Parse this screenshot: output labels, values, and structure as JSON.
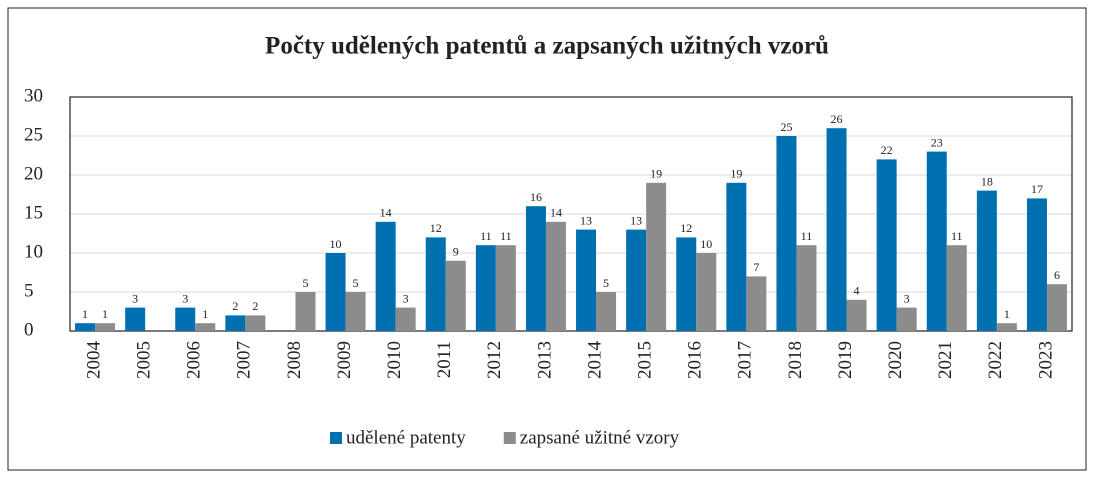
{
  "chart_data": {
    "type": "bar",
    "title": "Počty udělených patentů a zapsaných užitných vzorů",
    "categories": [
      "2004",
      "2005",
      "2006",
      "2007",
      "2008",
      "2009",
      "2010",
      "2011",
      "2012",
      "2013",
      "2014",
      "2015",
      "2016",
      "2017",
      "2018",
      "2019",
      "2020",
      "2021",
      "2022",
      "2023"
    ],
    "series": [
      {
        "name": "udělené patenty",
        "color": "#0070b0",
        "values": [
          1,
          3,
          3,
          2,
          null,
          10,
          14,
          12,
          11,
          16,
          13,
          13,
          12,
          19,
          25,
          26,
          22,
          23,
          18,
          17
        ]
      },
      {
        "name": "zapsané užitné vzory",
        "color": "#8c8c8c",
        "values": [
          1,
          null,
          1,
          2,
          5,
          5,
          3,
          9,
          11,
          14,
          5,
          19,
          10,
          7,
          11,
          4,
          3,
          11,
          1,
          6
        ]
      }
    ],
    "ylim": [
      0,
      30
    ],
    "yticks": [
      0,
      5,
      10,
      15,
      20,
      25,
      30
    ],
    "grid": true,
    "legend": "bottom"
  }
}
